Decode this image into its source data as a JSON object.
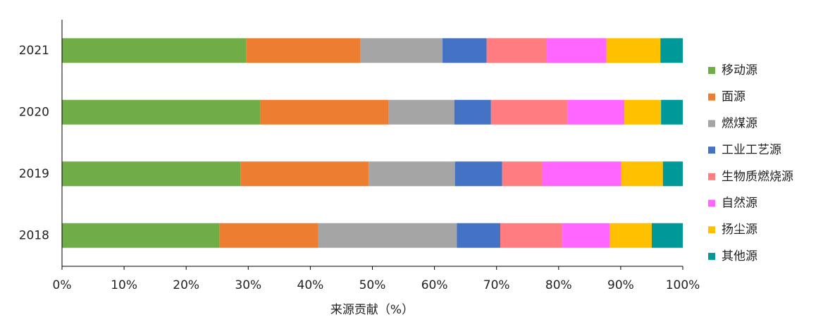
{
  "chart_data": {
    "type": "stacked-barh",
    "categories": [
      "2021",
      "2020",
      "2019",
      "2018"
    ],
    "series": [
      {
        "name": "移动源",
        "color": "#70ad47",
        "values": [
          29.7,
          31.9,
          28.8,
          25.4
        ]
      },
      {
        "name": "面源",
        "color": "#ed7d31",
        "values": [
          18.4,
          20.7,
          20.6,
          15.9
        ]
      },
      {
        "name": "燃煤源",
        "color": "#a5a5a5",
        "values": [
          13.2,
          10.6,
          13.9,
          22.3
        ]
      },
      {
        "name": "工业工艺源",
        "color": "#4472c4",
        "values": [
          7.1,
          5.9,
          7.6,
          7.0
        ]
      },
      {
        "name": "生物质燃烧源",
        "color": "#ff7c80",
        "values": [
          9.7,
          12.3,
          6.4,
          10.0
        ]
      },
      {
        "name": "自然源",
        "color": "#ff66ff",
        "values": [
          9.6,
          9.2,
          12.8,
          7.6
        ]
      },
      {
        "name": "扬尘源",
        "color": "#ffc000",
        "values": [
          8.7,
          5.9,
          6.7,
          6.8
        ]
      },
      {
        "name": "其他源",
        "color": "#009999",
        "values": [
          3.6,
          3.5,
          3.2,
          5.0
        ]
      }
    ],
    "xlabel": "来源贡献（%）",
    "xlim": [
      0,
      100
    ],
    "xticks": [
      {
        "value": 0,
        "label": "0%"
      },
      {
        "value": 10,
        "label": "10%"
      },
      {
        "value": 20,
        "label": "20%"
      },
      {
        "value": 30,
        "label": "30%"
      },
      {
        "value": 40,
        "label": "40%"
      },
      {
        "value": 50,
        "label": "50%"
      },
      {
        "value": 60,
        "label": "60%"
      },
      {
        "value": 70,
        "label": "70%"
      },
      {
        "value": 80,
        "label": "80%"
      },
      {
        "value": 90,
        "label": "90%"
      },
      {
        "value": 100,
        "label": "100%"
      }
    ],
    "legend": "right"
  }
}
